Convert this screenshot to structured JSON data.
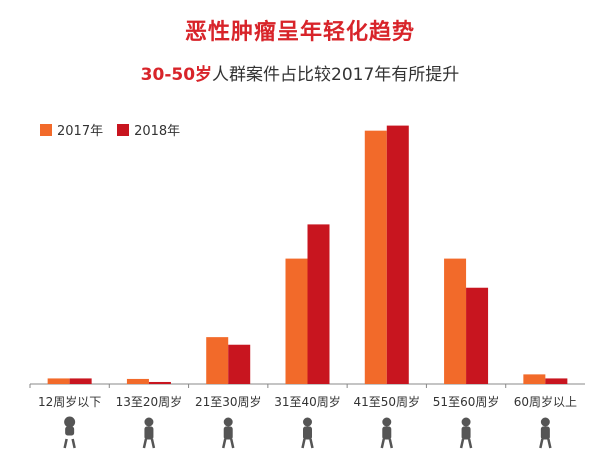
{
  "title": "恶性肿瘤呈年轻化趋势",
  "subtitle": {
    "highlight": "30-50岁",
    "rest": "人群案件占比较2017年有所提升"
  },
  "colors": {
    "s2017": "#f26a2a",
    "s2018": "#c8151f",
    "title": "#d8242a",
    "axis": "#888888"
  },
  "chart_data": {
    "type": "bar",
    "categories": [
      "12周岁以下",
      "13至20周岁",
      "21至30周岁",
      "31至40周岁",
      "41至50周岁",
      "51至60周岁",
      "60周岁以上"
    ],
    "series": [
      {
        "name": "2017年",
        "values": [
          2.2,
          2.0,
          18.5,
          49.5,
          100.0,
          49.5,
          3.8
        ]
      },
      {
        "name": "2018年",
        "values": [
          2.2,
          0.8,
          15.5,
          63.0,
          102.0,
          38.0,
          2.2
        ]
      }
    ],
    "ylim": [
      0,
      105
    ],
    "legend_position": "top-left",
    "grid": false
  },
  "icons": [
    "baby-icon",
    "child-ball-icon",
    "young-adult-icon",
    "adult-briefcase-icon",
    "middle-aged-icon",
    "traveler-luggage-icon",
    "elderly-cane-icon"
  ]
}
